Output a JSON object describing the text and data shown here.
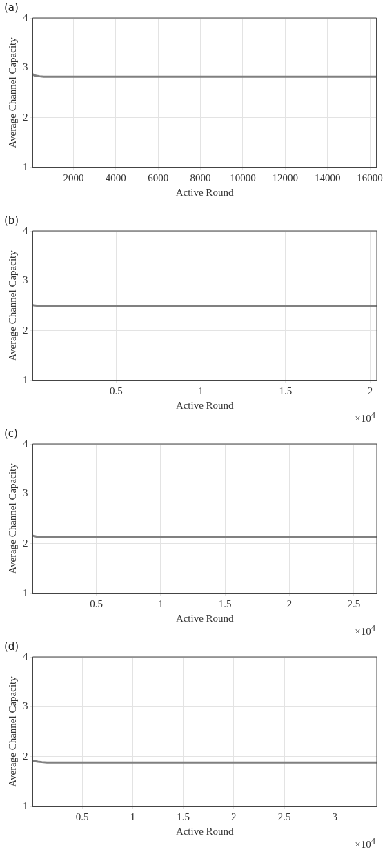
{
  "chart_data": [
    {
      "type": "line",
      "title": "(a)",
      "xlabel": "Active Round",
      "ylabel": "Average Channel Capacity",
      "x": [
        80,
        150,
        250,
        400,
        600,
        1000,
        2000,
        3000,
        4000,
        6000,
        8000,
        10000,
        12000,
        14000,
        16300
      ],
      "series": [
        {
          "color": "#808080",
          "values": [
            2.87,
            2.85,
            2.84,
            2.83,
            2.82,
            2.82,
            2.82,
            2.82,
            2.82,
            2.82,
            2.82,
            2.82,
            2.82,
            2.82,
            2.82
          ]
        }
      ],
      "xlim": [
        80,
        16310
      ],
      "ylim": [
        1,
        4
      ],
      "xticks": [
        2000,
        4000,
        6000,
        8000,
        10000,
        12000,
        14000,
        16000
      ],
      "yticks": [
        1,
        2,
        3,
        4
      ],
      "grid": true,
      "marker": "none",
      "line_style": "solid"
    },
    {
      "type": "line",
      "title": "(b)",
      "xlabel": "Active Round",
      "ylabel": "Average Channel Capacity",
      "annotations": [
        "×10$^{4}$"
      ],
      "x": [
        0.007,
        0.03,
        0.07,
        0.15,
        0.3,
        0.5,
        1,
        1.5,
        2.039
      ],
      "series": [
        {
          "color": "#808080",
          "values": [
            2.51,
            2.5,
            2.5,
            2.49,
            2.49,
            2.49,
            2.49,
            2.49,
            2.49
          ]
        }
      ],
      "xlim": [
        0.007,
        2.039
      ],
      "ylim": [
        1,
        4
      ],
      "xticks": [
        0.5,
        1,
        1.5,
        2
      ],
      "yticks": [
        1,
        2,
        3,
        4
      ],
      "grid": true,
      "marker": "none",
      "line_style": "solid"
    },
    {
      "type": "line",
      "title": "(c)",
      "xlabel": "Active Round",
      "ylabel": "Average Channel Capacity",
      "annotations": [
        "×10$^{4}$"
      ],
      "x": [
        0.006,
        0.02,
        0.05,
        0.1,
        0.3,
        0.5,
        1,
        1.5,
        2,
        2.678
      ],
      "series": [
        {
          "color": "#808080",
          "values": [
            2.16,
            2.15,
            2.13,
            2.13,
            2.13,
            2.13,
            2.13,
            2.13,
            2.13,
            2.13
          ]
        }
      ],
      "xlim": [
        0.006,
        2.678
      ],
      "ylim": [
        1,
        4
      ],
      "xticks": [
        0.5,
        1,
        1.5,
        2,
        2.5
      ],
      "yticks": [
        1,
        2,
        3,
        4
      ],
      "grid": true,
      "marker": "none",
      "line_style": "solid"
    },
    {
      "type": "line",
      "title": "(d)",
      "xlabel": "Active Round",
      "ylabel": "Average Channel Capacity",
      "annotations": [
        "×10$^{4}$"
      ],
      "x": [
        0.01,
        0.03,
        0.06,
        0.1,
        0.15,
        0.3,
        0.5,
        1,
        2,
        3.415
      ],
      "series": [
        {
          "color": "#808080",
          "values": [
            1.92,
            1.91,
            1.9,
            1.89,
            1.88,
            1.88,
            1.88,
            1.88,
            1.88,
            1.88
          ]
        }
      ],
      "xlim": [
        0.01,
        3.415
      ],
      "ylim": [
        1,
        4
      ],
      "xticks": [
        0.5,
        1,
        1.5,
        2,
        2.5,
        3
      ],
      "yticks": [
        1,
        2,
        3,
        4
      ],
      "grid": true,
      "marker": "none",
      "line_style": "solid"
    }
  ]
}
